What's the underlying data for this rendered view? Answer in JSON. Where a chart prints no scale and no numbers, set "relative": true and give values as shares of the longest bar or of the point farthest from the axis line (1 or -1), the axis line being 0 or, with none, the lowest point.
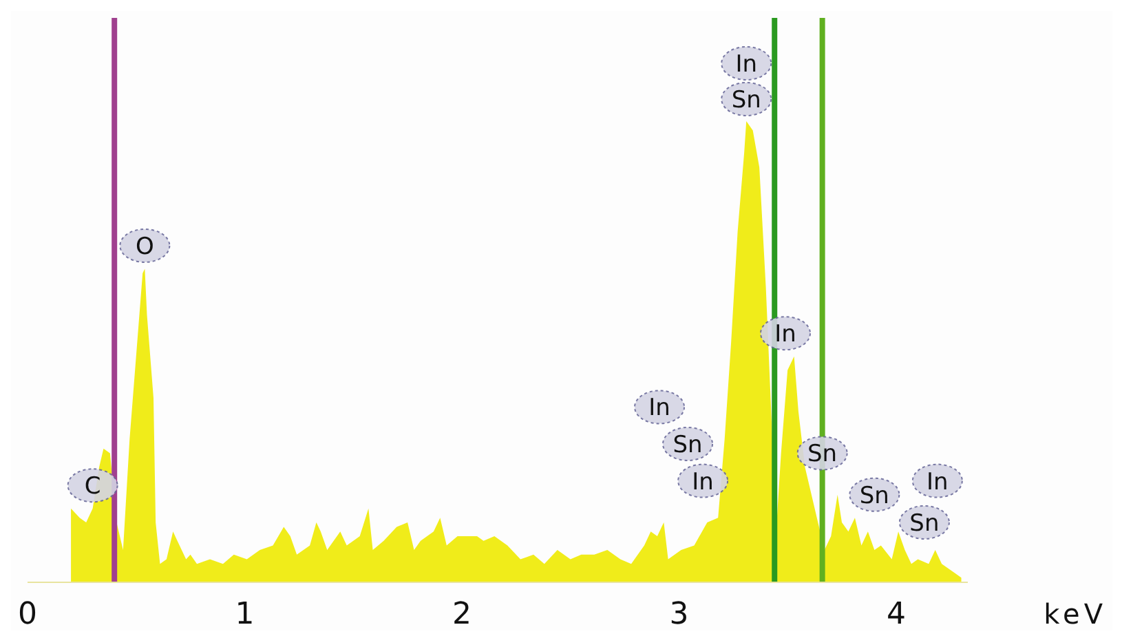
{
  "chart_data": {
    "type": "area",
    "xlabel": "keV",
    "relative": true,
    "xlim": [
      0,
      4.33
    ],
    "xticks": [
      0,
      1,
      2,
      3,
      4
    ],
    "grid": false,
    "series": [
      {
        "color": "#f0ec1a",
        "x": [
          0.2,
          0.24,
          0.27,
          0.3,
          0.33,
          0.35,
          0.38,
          0.41,
          0.44,
          0.47,
          0.5,
          0.53,
          0.54,
          0.55,
          0.58,
          0.59,
          0.61,
          0.64,
          0.67,
          0.7,
          0.73,
          0.75,
          0.78,
          0.84,
          0.9,
          0.95,
          1.01,
          1.07,
          1.13,
          1.18,
          1.21,
          1.24,
          1.3,
          1.33,
          1.35,
          1.38,
          1.44,
          1.47,
          1.53,
          1.57,
          1.59,
          1.64,
          1.7,
          1.75,
          1.78,
          1.81,
          1.87,
          1.9,
          1.93,
          1.98,
          2.07,
          2.1,
          2.15,
          2.21,
          2.27,
          2.33,
          2.38,
          2.44,
          2.5,
          2.55,
          2.61,
          2.67,
          2.73,
          2.78,
          2.84,
          2.87,
          2.9,
          2.93,
          2.95,
          3.01,
          3.07,
          3.13,
          3.18,
          3.21,
          3.24,
          3.27,
          3.3,
          3.31,
          3.34,
          3.37,
          3.4,
          3.43,
          3.45,
          3.47,
          3.5,
          3.53,
          3.55,
          3.58,
          3.61,
          3.64,
          3.67,
          3.7,
          3.73,
          3.75,
          3.78,
          3.81,
          3.84,
          3.87,
          3.9,
          3.93,
          3.98,
          4.01,
          4.04,
          4.07,
          4.1,
          4.15,
          4.18,
          4.21,
          4.27,
          4.3
        ],
        "values": [
          0.16,
          0.14,
          0.13,
          0.16,
          0.25,
          0.29,
          0.28,
          0.13,
          0.07,
          0.31,
          0.49,
          0.67,
          0.68,
          0.58,
          0.4,
          0.13,
          0.04,
          0.05,
          0.11,
          0.08,
          0.05,
          0.06,
          0.04,
          0.05,
          0.04,
          0.06,
          0.05,
          0.07,
          0.08,
          0.12,
          0.1,
          0.06,
          0.08,
          0.13,
          0.11,
          0.07,
          0.11,
          0.08,
          0.1,
          0.16,
          0.07,
          0.09,
          0.12,
          0.13,
          0.07,
          0.09,
          0.11,
          0.14,
          0.08,
          0.1,
          0.1,
          0.09,
          0.1,
          0.08,
          0.05,
          0.06,
          0.04,
          0.07,
          0.05,
          0.06,
          0.06,
          0.07,
          0.05,
          0.04,
          0.08,
          0.11,
          0.1,
          0.13,
          0.05,
          0.07,
          0.08,
          0.13,
          0.14,
          0.31,
          0.52,
          0.76,
          0.93,
          1,
          0.98,
          0.9,
          0.64,
          0.31,
          0.13,
          0.28,
          0.46,
          0.49,
          0.37,
          0.25,
          0.19,
          0.13,
          0.07,
          0.1,
          0.19,
          0.13,
          0.11,
          0.14,
          0.08,
          0.11,
          0.07,
          0.08,
          0.05,
          0.11,
          0.07,
          0.04,
          0.05,
          0.04,
          0.07,
          0.04,
          0.02,
          0.01
        ]
      }
    ],
    "ref_lines": [
      {
        "axis": "x",
        "value": 0.4,
        "color": "#a0408f"
      },
      {
        "axis": "x",
        "value": 3.44,
        "color": "#2a9a20"
      },
      {
        "axis": "x",
        "value": 3.66,
        "color": "#60b020"
      }
    ],
    "annotations": [
      {
        "text": "C",
        "x": 0.3,
        "y": 0.21
      },
      {
        "text": "O",
        "x": 0.54,
        "y": 0.73
      },
      {
        "text": "Sn",
        "x": 3.31,
        "y": 1
      },
      {
        "text": "In",
        "x": 3.31,
        "y": 1
      },
      {
        "text": "In",
        "x": 3.49,
        "y": 0.54
      },
      {
        "text": "Sn",
        "x": 3.66,
        "y": 0.28
      },
      {
        "text": "In",
        "x": 2.91,
        "y": 0.38
      },
      {
        "text": "Sn",
        "x": 3.04,
        "y": 0.3
      },
      {
        "text": "In",
        "x": 3.11,
        "y": 0.22
      },
      {
        "text": "Sn",
        "x": 3.9,
        "y": 0.19
      },
      {
        "text": "In",
        "x": 4.19,
        "y": 0.22
      },
      {
        "text": "Sn",
        "x": 4.13,
        "y": 0.13
      }
    ]
  }
}
